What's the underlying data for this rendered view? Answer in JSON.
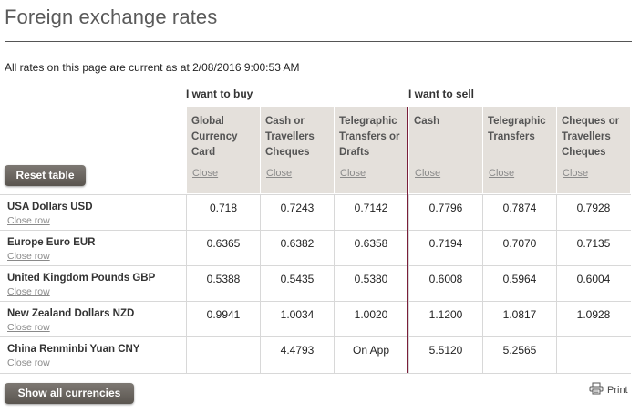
{
  "page": {
    "title": "Foreign exchange rates",
    "as_of": "All rates on this page are current as at 2/08/2016 9:00:53 AM"
  },
  "groups": {
    "buy": "I want to buy",
    "sell": "I want to sell"
  },
  "columns": [
    {
      "label": "Global Currency Card",
      "close": "Close"
    },
    {
      "label": "Cash or Travellers Cheques",
      "close": "Close"
    },
    {
      "label": "Telegraphic Transfers or Drafts",
      "close": "Close"
    },
    {
      "label": "Cash",
      "close": "Close"
    },
    {
      "label": "Telegraphic Transfers",
      "close": "Close"
    },
    {
      "label": "Cheques or Travellers Cheques",
      "close": "Close"
    }
  ],
  "buttons": {
    "reset": "Reset table",
    "show_all": "Show all currencies",
    "print": "Print"
  },
  "rows": [
    {
      "name": "USA Dollars USD",
      "close": "Close row",
      "values": [
        "0.718",
        "0.7243",
        "0.7142",
        "0.7796",
        "0.7874",
        "0.7928"
      ]
    },
    {
      "name": "Europe Euro EUR",
      "close": "Close row",
      "values": [
        "0.6365",
        "0.6382",
        "0.6358",
        "0.7194",
        "0.7070",
        "0.7135"
      ]
    },
    {
      "name": "United Kingdom Pounds GBP",
      "close": "Close row",
      "values": [
        "0.5388",
        "0.5435",
        "0.5380",
        "0.6008",
        "0.5964",
        "0.6004"
      ]
    },
    {
      "name": "New Zealand Dollars NZD",
      "close": "Close row",
      "values": [
        "0.9941",
        "1.0034",
        "1.0020",
        "1.1200",
        "1.0817",
        "1.0928"
      ]
    },
    {
      "name": "China Renminbi Yuan CNY",
      "close": "Close row",
      "values": [
        "",
        "4.4793",
        "On App",
        "5.5120",
        "5.2565",
        ""
      ]
    }
  ],
  "colors": {
    "accent_divider": "#7a1e3a",
    "header_bg": "#e4e0db",
    "button_bg": "#6a655f"
  },
  "icons": {
    "print": "printer-icon"
  }
}
